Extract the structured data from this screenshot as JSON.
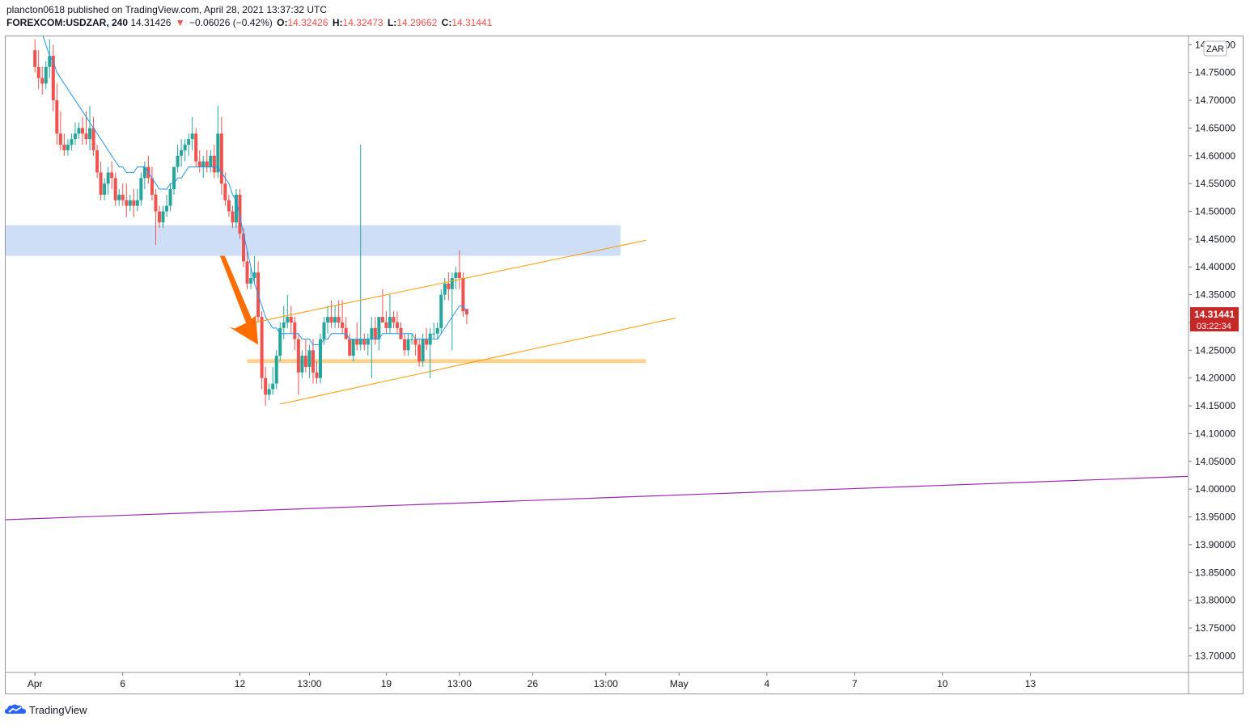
{
  "header": {
    "line1": "plancton0618 published on TradingView.com, April 28, 2021 13:37:32 UTC",
    "symbol": "FOREXCOM:USDZAR, 240",
    "price": "14.31426",
    "change": "−0.06026 (−0.42%)",
    "o_label": "O:",
    "o_val": "14.32426",
    "h_label": "H:",
    "h_val": "14.32473",
    "l_label": "L:",
    "l_val": "14.29662",
    "c_label": "C:",
    "c_val": "14.31441"
  },
  "footer": {
    "brand": "TradingView"
  },
  "currency_tag": "ZAR",
  "last_price": {
    "value": "14.31441",
    "countdown": "03:22:34"
  },
  "colors": {
    "up": "#26a69a",
    "down": "#ef5350",
    "ema": "#2196f3",
    "zone": "#c5d8f5",
    "channel": "#ff9800",
    "support": "#ffcc80",
    "trendline": "#9c27b0",
    "arrow": "#ff6d00",
    "price_tag": "#c62828"
  },
  "chart_data": {
    "type": "candlestick",
    "yaxis_ticks": [
      "14.80000",
      "14.75000",
      "14.70000",
      "14.65000",
      "14.60000",
      "14.55000",
      "14.50000",
      "14.45000",
      "14.40000",
      "14.35000",
      "14.30000",
      "14.25000",
      "14.20000",
      "14.15000",
      "14.10000",
      "14.05000",
      "14.00000",
      "13.95000",
      "13.90000",
      "13.85000",
      "13.80000",
      "13.75000",
      "13.70000"
    ],
    "ylim": [
      13.67,
      14.815
    ],
    "xaxis_labels": [
      "Apr",
      "6",
      "12",
      "13:00",
      "19",
      "13:00",
      "26",
      "13:00",
      "May",
      "4",
      "7",
      "10",
      "13"
    ],
    "x_range": [
      -8,
      315
    ],
    "xaxis_label_idx": [
      0,
      24,
      56,
      75,
      96,
      116,
      136,
      156,
      176,
      200,
      224,
      248,
      272
    ],
    "ohlc": [
      [
        14.79,
        14.81,
        14.75,
        14.76
      ],
      [
        14.76,
        14.79,
        14.72,
        14.74
      ],
      [
        14.74,
        14.76,
        14.71,
        14.73
      ],
      [
        14.73,
        14.77,
        14.72,
        14.76
      ],
      [
        14.76,
        14.81,
        14.74,
        14.78
      ],
      [
        14.78,
        14.8,
        14.68,
        14.7
      ],
      [
        14.7,
        14.73,
        14.62,
        14.64
      ],
      [
        14.64,
        14.68,
        14.61,
        14.62
      ],
      [
        14.62,
        14.64,
        14.6,
        14.61
      ],
      [
        14.61,
        14.63,
        14.6,
        14.62
      ],
      [
        14.62,
        14.64,
        14.61,
        14.63
      ],
      [
        14.63,
        14.66,
        14.62,
        14.64
      ],
      [
        14.64,
        14.66,
        14.63,
        14.65
      ],
      [
        14.65,
        14.67,
        14.62,
        14.64
      ],
      [
        14.64,
        14.68,
        14.62,
        14.63
      ],
      [
        14.63,
        14.69,
        14.61,
        14.65
      ],
      [
        14.65,
        14.67,
        14.6,
        14.61
      ],
      [
        14.61,
        14.62,
        14.56,
        14.57
      ],
      [
        14.57,
        14.59,
        14.52,
        14.53
      ],
      [
        14.53,
        14.56,
        14.52,
        14.55
      ],
      [
        14.55,
        14.58,
        14.53,
        14.57
      ],
      [
        14.57,
        14.59,
        14.54,
        14.56
      ],
      [
        14.56,
        14.57,
        14.51,
        14.52
      ],
      [
        14.52,
        14.54,
        14.51,
        14.53
      ],
      [
        14.53,
        14.55,
        14.51,
        14.52
      ],
      [
        14.52,
        14.55,
        14.49,
        14.51
      ],
      [
        14.51,
        14.53,
        14.5,
        14.52
      ],
      [
        14.52,
        14.54,
        14.49,
        14.51
      ],
      [
        14.51,
        14.54,
        14.5,
        14.52
      ],
      [
        14.52,
        14.57,
        14.51,
        14.56
      ],
      [
        14.56,
        14.59,
        14.54,
        14.58
      ],
      [
        14.58,
        14.6,
        14.55,
        14.56
      ],
      [
        14.56,
        14.58,
        14.52,
        14.53
      ],
      [
        14.53,
        14.54,
        14.44,
        14.5
      ],
      [
        14.5,
        14.51,
        14.47,
        14.48
      ],
      [
        14.48,
        14.51,
        14.47,
        14.5
      ],
      [
        14.5,
        14.53,
        14.49,
        14.51
      ],
      [
        14.51,
        14.55,
        14.5,
        14.54
      ],
      [
        14.54,
        14.58,
        14.53,
        14.58
      ],
      [
        14.58,
        14.62,
        14.57,
        14.6
      ],
      [
        14.6,
        14.63,
        14.58,
        14.61
      ],
      [
        14.61,
        14.63,
        14.59,
        14.62
      ],
      [
        14.62,
        14.64,
        14.6,
        14.63
      ],
      [
        14.63,
        14.67,
        14.61,
        14.64
      ],
      [
        14.64,
        14.65,
        14.58,
        14.59
      ],
      [
        14.59,
        14.61,
        14.57,
        14.58
      ],
      [
        14.58,
        14.6,
        14.56,
        14.59
      ],
      [
        14.59,
        14.61,
        14.57,
        14.58
      ],
      [
        14.58,
        14.61,
        14.57,
        14.6
      ],
      [
        14.6,
        14.62,
        14.56,
        14.57
      ],
      [
        14.57,
        14.69,
        14.56,
        14.64
      ],
      [
        14.64,
        14.67,
        14.53,
        14.55
      ],
      [
        14.55,
        14.57,
        14.51,
        14.52
      ],
      [
        14.52,
        14.53,
        14.49,
        14.5
      ],
      [
        14.5,
        14.51,
        14.47,
        14.48
      ],
      [
        14.48,
        14.54,
        14.47,
        14.53
      ],
      [
        14.53,
        14.54,
        14.45,
        14.46
      ],
      [
        14.46,
        14.47,
        14.4,
        14.41
      ],
      [
        14.41,
        14.43,
        14.36,
        14.37
      ],
      [
        14.37,
        14.4,
        14.36,
        14.38
      ],
      [
        14.38,
        14.42,
        14.37,
        14.39
      ],
      [
        14.39,
        14.41,
        14.3,
        14.31
      ],
      [
        14.31,
        14.32,
        14.18,
        14.2
      ],
      [
        14.2,
        14.22,
        14.15,
        14.17
      ],
      [
        14.17,
        14.19,
        14.16,
        14.18
      ],
      [
        14.18,
        14.22,
        14.17,
        14.19
      ],
      [
        14.19,
        14.25,
        14.18,
        14.24
      ],
      [
        14.24,
        14.3,
        14.23,
        14.29
      ],
      [
        14.29,
        14.33,
        14.27,
        14.3
      ],
      [
        14.3,
        14.35,
        14.29,
        14.31
      ],
      [
        14.31,
        14.33,
        14.28,
        14.3
      ],
      [
        14.3,
        14.31,
        14.25,
        14.27
      ],
      [
        14.27,
        14.28,
        14.17,
        14.21
      ],
      [
        14.21,
        14.25,
        14.2,
        14.24
      ],
      [
        14.24,
        14.27,
        14.21,
        14.22
      ],
      [
        14.22,
        14.26,
        14.2,
        14.25
      ],
      [
        14.25,
        14.27,
        14.19,
        14.21
      ],
      [
        14.21,
        14.23,
        14.19,
        14.2
      ],
      [
        14.2,
        14.28,
        14.19,
        14.27
      ],
      [
        14.27,
        14.31,
        14.26,
        14.3
      ],
      [
        14.3,
        14.33,
        14.28,
        14.31
      ],
      [
        14.31,
        14.34,
        14.29,
        14.3
      ],
      [
        14.3,
        14.33,
        14.29,
        14.31
      ],
      [
        14.31,
        14.34,
        14.29,
        14.3
      ],
      [
        14.3,
        14.34,
        14.28,
        14.29
      ],
      [
        14.29,
        14.31,
        14.27,
        14.27
      ],
      [
        14.27,
        14.28,
        14.24,
        14.24
      ],
      [
        14.24,
        14.26,
        14.23,
        14.27
      ],
      [
        14.27,
        14.3,
        14.25,
        14.26
      ],
      [
        14.26,
        14.62,
        14.25,
        14.27
      ],
      [
        14.27,
        14.28,
        14.25,
        14.26
      ],
      [
        14.26,
        14.28,
        14.24,
        14.27
      ],
      [
        14.27,
        14.31,
        14.2,
        14.29
      ],
      [
        14.29,
        14.31,
        14.26,
        14.27
      ],
      [
        14.27,
        14.3,
        14.25,
        14.31
      ],
      [
        14.31,
        14.36,
        14.3,
        14.3
      ],
      [
        14.3,
        14.32,
        14.28,
        14.29
      ],
      [
        14.29,
        14.35,
        14.28,
        14.31
      ],
      [
        14.31,
        14.32,
        14.29,
        14.3
      ],
      [
        14.3,
        14.32,
        14.28,
        14.29
      ],
      [
        14.29,
        14.3,
        14.27,
        14.27
      ],
      [
        14.27,
        14.28,
        14.24,
        14.25
      ],
      [
        14.25,
        14.28,
        14.24,
        14.27
      ],
      [
        14.27,
        14.28,
        14.26,
        14.27
      ],
      [
        14.27,
        14.28,
        14.24,
        14.26
      ],
      [
        14.26,
        14.27,
        14.22,
        14.23
      ],
      [
        14.23,
        14.28,
        14.22,
        14.27
      ],
      [
        14.27,
        14.29,
        14.25,
        14.26
      ],
      [
        14.26,
        14.29,
        14.2,
        14.28
      ],
      [
        14.28,
        14.3,
        14.27,
        14.28
      ],
      [
        14.28,
        14.3,
        14.27,
        14.29
      ],
      [
        14.29,
        14.36,
        14.28,
        14.35
      ],
      [
        14.35,
        14.38,
        14.34,
        14.37
      ],
      [
        14.37,
        14.39,
        14.34,
        14.36
      ],
      [
        14.36,
        14.39,
        14.25,
        14.38
      ],
      [
        14.38,
        14.4,
        14.36,
        14.39
      ],
      [
        14.39,
        14.43,
        14.36,
        14.38
      ],
      [
        14.38,
        14.39,
        14.31,
        14.32
      ],
      [
        14.32426,
        14.32473,
        14.29662,
        14.31441
      ]
    ],
    "ema": [
      14.84,
      14.83,
      14.82,
      14.8,
      14.78,
      14.77,
      14.75,
      14.74,
      14.73,
      14.72,
      14.71,
      14.7,
      14.69,
      14.68,
      14.67,
      14.66,
      14.65,
      14.64,
      14.63,
      14.62,
      14.61,
      14.6,
      14.59,
      14.58,
      14.58,
      14.57,
      14.57,
      14.57,
      14.58,
      14.58,
      14.58,
      14.57,
      14.56,
      14.55,
      14.54,
      14.54,
      14.54,
      14.55,
      14.55,
      14.56,
      14.56,
      14.57,
      14.58,
      14.58,
      14.58,
      14.58,
      14.58,
      14.58,
      14.58,
      14.58,
      14.58,
      14.57,
      14.56,
      14.55,
      14.53,
      14.52,
      14.49,
      14.46,
      14.43,
      14.4,
      14.37,
      14.35,
      14.33,
      14.31,
      14.3,
      14.29,
      14.29,
      14.28,
      14.28,
      14.28,
      14.28,
      14.28,
      14.28,
      14.27,
      14.27,
      14.27,
      14.26,
      14.26,
      14.26,
      14.27,
      14.27,
      14.28,
      14.28,
      14.28,
      14.28,
      14.28,
      14.27,
      14.27,
      14.27,
      14.27,
      14.27,
      14.27,
      14.27,
      14.27,
      14.27,
      14.28,
      14.28,
      14.28,
      14.28,
      14.28,
      14.28,
      14.28,
      14.28,
      14.28,
      14.27,
      14.27,
      14.27,
      14.27,
      14.27,
      14.27,
      14.27,
      14.28,
      14.29,
      14.3,
      14.31,
      14.32,
      14.33,
      14.33,
      14.32
    ]
  }
}
